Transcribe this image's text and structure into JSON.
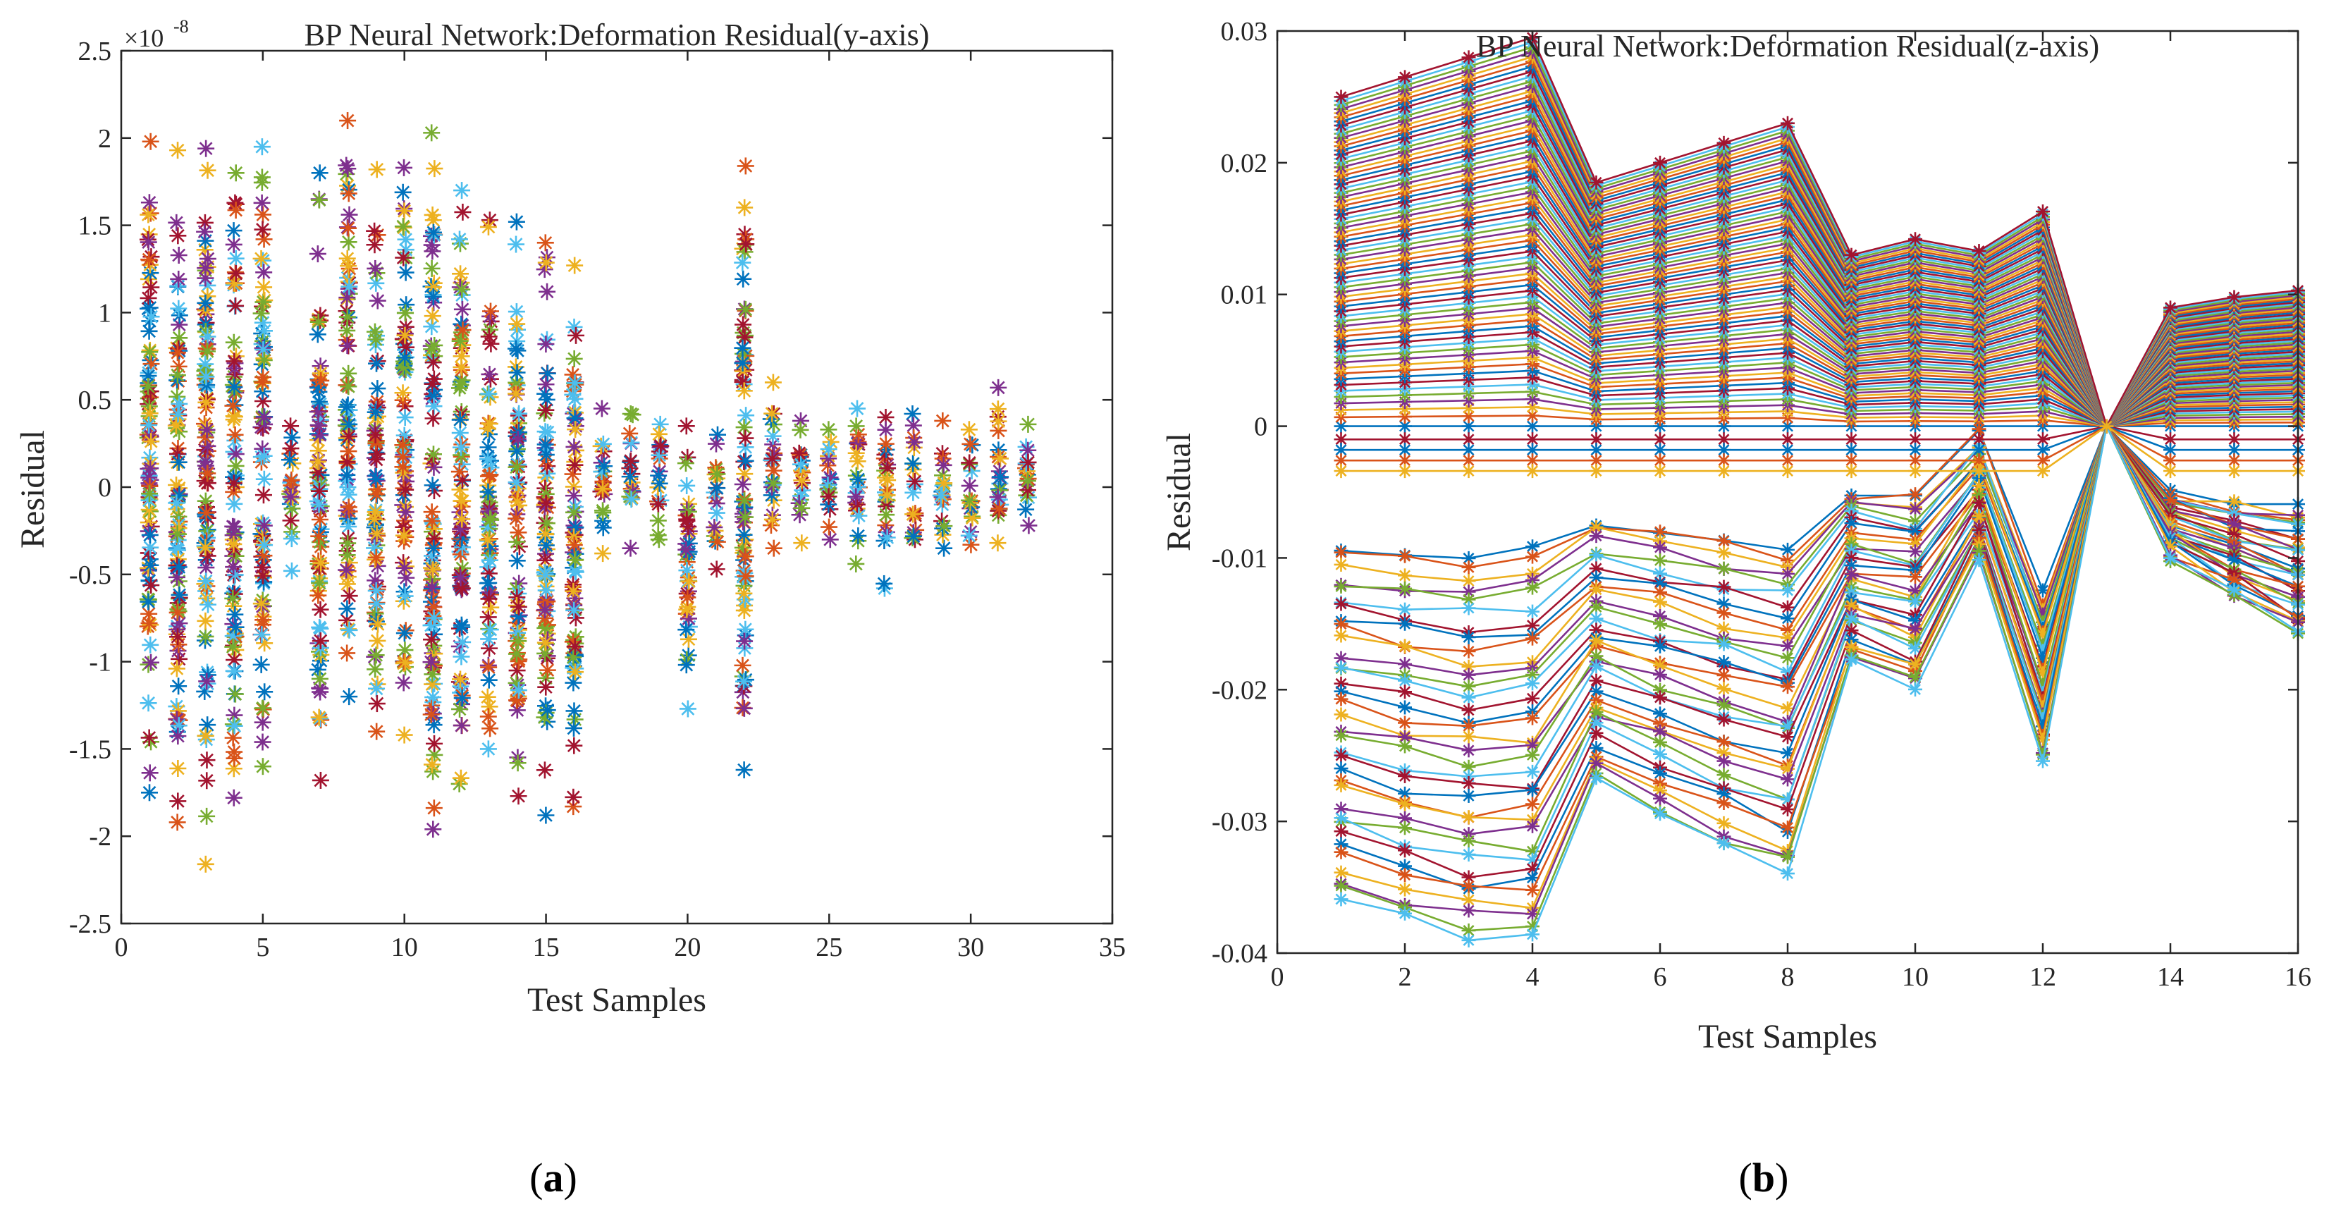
{
  "colors": [
    "#0072BD",
    "#D95319",
    "#EDB120",
    "#7E2F8E",
    "#77AC30",
    "#4DBEEE",
    "#A2142F"
  ],
  "panels": {
    "a": {
      "label_open": "(",
      "label_letter": "a",
      "label_close": ")"
    },
    "b": {
      "label_open": "(",
      "label_letter": "b",
      "label_close": ")"
    }
  },
  "chart_data": [
    {
      "type": "scatter",
      "title": "BP Neural Network:Deformation Residual(y-axis)",
      "xlabel": "Test Samples",
      "ylabel": "Residual",
      "y_multiplier": {
        "base": "×10",
        "exponent": "-8"
      },
      "xlim": [
        0,
        35
      ],
      "ylim": [
        -2.5,
        2.5
      ],
      "xticks": [
        0,
        5,
        10,
        15,
        20,
        25,
        30,
        35
      ],
      "xtick_labels": [
        "0",
        "5",
        "10",
        "15",
        "20",
        "25",
        "30",
        "35"
      ],
      "yticks": [
        -2.5,
        -2,
        -1.5,
        -1,
        -0.5,
        0,
        0.5,
        1,
        1.5,
        2,
        2.5
      ],
      "ytick_labels": [
        "-2.5",
        "-2",
        "-1.5",
        "-1",
        "-0.5",
        "0",
        "0.5",
        "1",
        "1.5",
        "2",
        "2.5"
      ],
      "marker": "asterisk",
      "grid": false,
      "samples": [
        {
          "x": 1,
          "min": -1.75,
          "max": 1.98
        },
        {
          "x": 2,
          "min": -1.92,
          "max": 1.93
        },
        {
          "x": 3,
          "min": -2.16,
          "max": 1.94
        },
        {
          "x": 4,
          "min": -1.78,
          "max": 1.8
        },
        {
          "x": 5,
          "min": -1.6,
          "max": 1.95
        },
        {
          "x": 6,
          "min": -0.48,
          "max": 0.35
        },
        {
          "x": 7,
          "min": -1.68,
          "max": 1.8
        },
        {
          "x": 8,
          "min": -1.2,
          "max": 2.1
        },
        {
          "x": 9,
          "min": -1.4,
          "max": 1.82
        },
        {
          "x": 10,
          "min": -1.42,
          "max": 1.83
        },
        {
          "x": 11,
          "min": -1.96,
          "max": 2.03
        },
        {
          "x": 12,
          "min": -1.7,
          "max": 1.7
        },
        {
          "x": 13,
          "min": -1.5,
          "max": 1.53
        },
        {
          "x": 14,
          "min": -1.77,
          "max": 1.52
        },
        {
          "x": 15,
          "min": -1.88,
          "max": 1.4
        },
        {
          "x": 16,
          "min": -1.83,
          "max": 1.27
        },
        {
          "x": 17,
          "min": -0.38,
          "max": 0.45
        },
        {
          "x": 18,
          "min": -0.35,
          "max": 0.42
        },
        {
          "x": 19,
          "min": -0.3,
          "max": 0.36
        },
        {
          "x": 20,
          "min": -1.27,
          "max": 0.35
        },
        {
          "x": 21,
          "min": -0.47,
          "max": 0.3
        },
        {
          "x": 22,
          "min": -1.62,
          "max": 1.84
        },
        {
          "x": 23,
          "min": -0.35,
          "max": 0.6
        },
        {
          "x": 24,
          "min": -0.32,
          "max": 0.38
        },
        {
          "x": 25,
          "min": -0.3,
          "max": 0.33
        },
        {
          "x": 26,
          "min": -0.44,
          "max": 0.45
        },
        {
          "x": 27,
          "min": -0.58,
          "max": 0.4
        },
        {
          "x": 28,
          "min": -0.3,
          "max": 0.42
        },
        {
          "x": 29,
          "min": -0.35,
          "max": 0.38
        },
        {
          "x": 30,
          "min": -0.33,
          "max": 0.33
        },
        {
          "x": 31,
          "min": -0.32,
          "max": 0.57
        },
        {
          "x": 32,
          "min": -0.22,
          "max": 0.36
        }
      ]
    },
    {
      "type": "line",
      "title": "BP Neural Network:Deformation Residual(z-axis)",
      "xlabel": "Test Samples",
      "ylabel": "Residual",
      "xlim": [
        0,
        16
      ],
      "ylim": [
        -0.04,
        0.03
      ],
      "xticks": [
        0,
        2,
        4,
        6,
        8,
        10,
        12,
        14,
        16
      ],
      "xtick_labels": [
        "0",
        "2",
        "4",
        "6",
        "8",
        "10",
        "12",
        "14",
        "16"
      ],
      "yticks": [
        -0.04,
        -0.03,
        -0.02,
        -0.01,
        0,
        0.01,
        0.02,
        0.03
      ],
      "ytick_labels": [
        "-0.04",
        "-0.03",
        "-0.02",
        "-0.01",
        "0",
        "0.01",
        "0.02",
        "0.03"
      ],
      "marker": "asterisk",
      "grid": false,
      "x": [
        1,
        2,
        3,
        4,
        5,
        6,
        7,
        8,
        9,
        10,
        11,
        12,
        13,
        14,
        15,
        16
      ],
      "upper_envelope": [
        0.025,
        0.0265,
        0.028,
        0.0295,
        0.0185,
        0.02,
        0.0215,
        0.023,
        0.013,
        0.0142,
        0.0133,
        0.0163,
        0,
        0.009,
        0.0098,
        0.0103
      ],
      "lower_bundle_top": [
        -0.009,
        -0.0095,
        -0.01,
        -0.0092,
        -0.007,
        -0.0078,
        -0.0085,
        -0.009,
        -0.0047,
        -0.0052,
        -0.0005,
        -0.013,
        0,
        -0.0048,
        -0.0058,
        -0.0065
      ],
      "lower_bundle_bottom": [
        -0.036,
        -0.0375,
        -0.039,
        -0.039,
        -0.027,
        -0.0295,
        -0.032,
        -0.034,
        -0.018,
        -0.02,
        -0.01,
        -0.025,
        0,
        -0.01,
        -0.013,
        -0.0158
      ]
    }
  ]
}
